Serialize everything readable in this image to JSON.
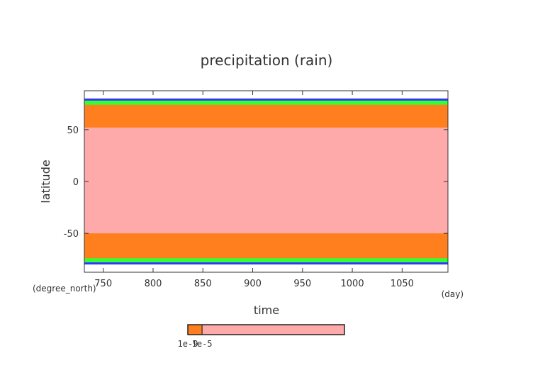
{
  "chart_data": {
    "type": "contour",
    "title": "precipitation (rain)",
    "xlabel": "time",
    "ylabel": "latitude",
    "x_unit": "(day)",
    "y_unit": "(degree_north)",
    "xlim": [
      731,
      1096
    ],
    "xticks": [
      750,
      800,
      850,
      900,
      950,
      1000,
      1050
    ],
    "ylim": [
      -87.5,
      87.5
    ],
    "yticks": [
      -50,
      0,
      50
    ],
    "bands": [
      {
        "color": "#3333ff",
        "y": [
          -80,
          80
        ]
      },
      {
        "color": "#33ff33",
        "y": [
          -78,
          78
        ]
      },
      {
        "color": "#ff7f1f",
        "y": [
          -74,
          74
        ]
      },
      {
        "color": "#ffaaaa",
        "y": [
          -50,
          52
        ]
      }
    ],
    "colorbar": {
      "lim": [
        0,
        0.00011
      ],
      "ticks": [
        {
          "value": 1e-09,
          "label": "1e-9"
        },
        {
          "value": 1e-05,
          "label": "1e-5"
        }
      ],
      "colors": [
        "#ff7f1f",
        "#ffaaaa"
      ]
    }
  }
}
